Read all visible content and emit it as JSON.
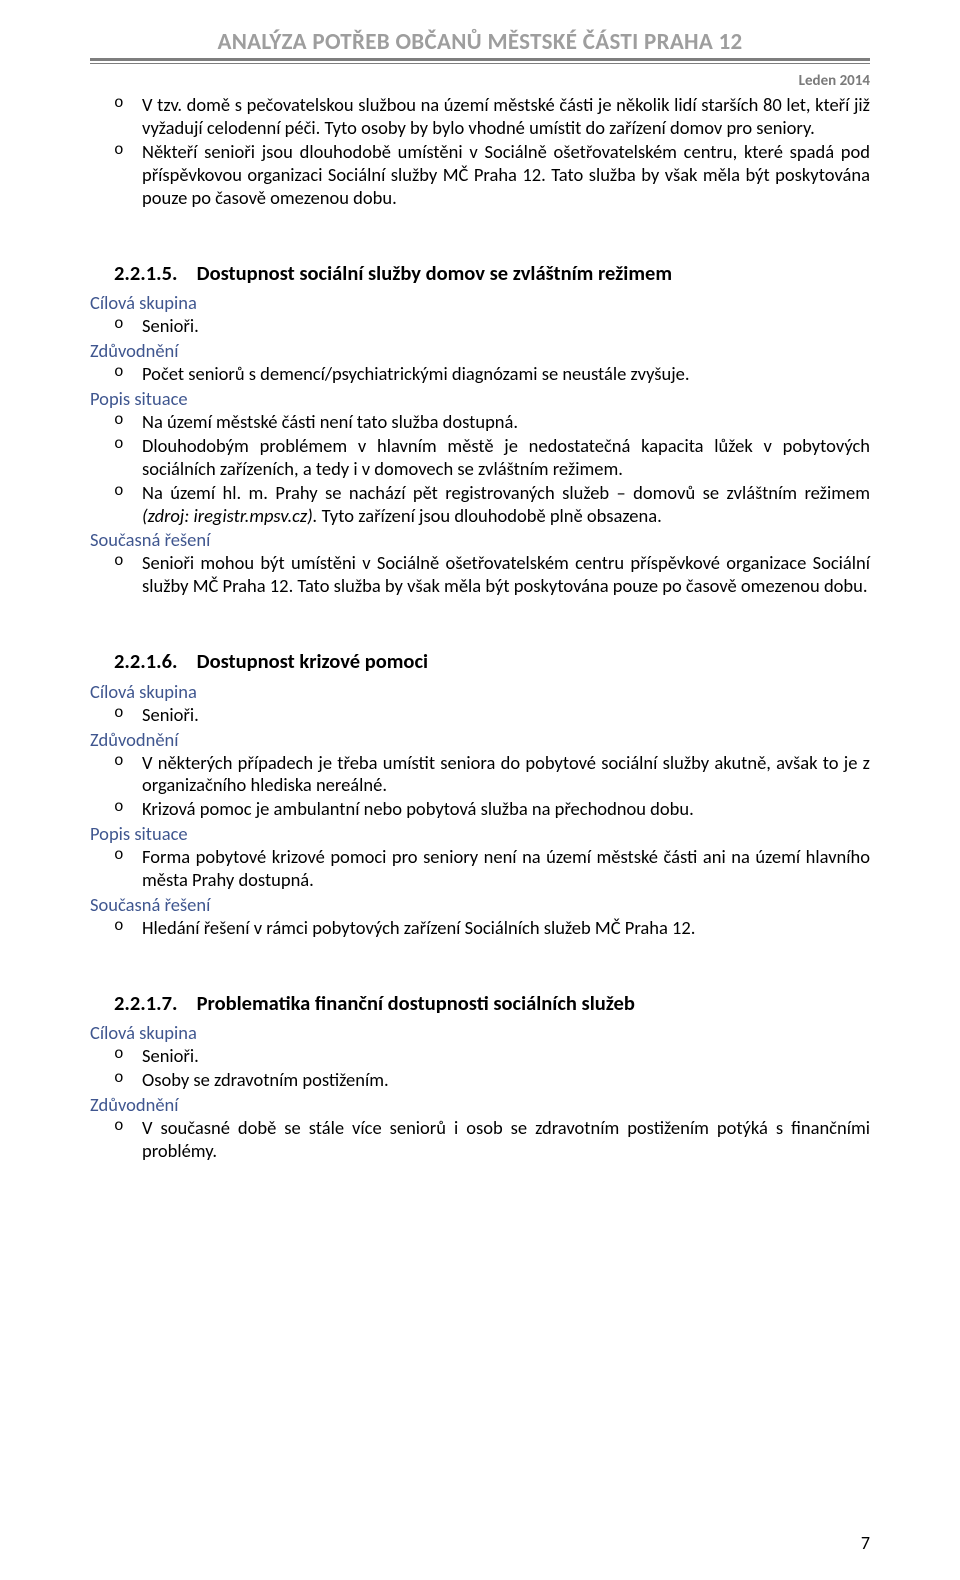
{
  "header": {
    "title": "ANALÝZA POTŘEB OBČANŮ MĚSTSKÉ ČÁSTI PRAHA 12",
    "date": "Leden 2014"
  },
  "intro_items": [
    "V tzv. domě s pečovatelskou službou na území městské části je několik lidí starších 80 let, kteří již vyžadují celodenní péči. Tyto osoby by bylo vhodné umístit do zařízení domov pro seniory.",
    "Někteří senioři jsou dlouhodobě umístěni v Sociálně ošetřovatelském centru, které spadá pod příspěvkovou organizaci Sociální služby MČ Praha 12. Tato služba by však měla být poskytována pouze po časově omezenou dobu."
  ],
  "labels": {
    "cilova": "Cílová skupina",
    "zduvod": "Zdůvodnění",
    "popis": "Popis situace",
    "reseni": "Současná řešení"
  },
  "s215": {
    "num": "2.2.1.5.",
    "title": "Dostupnost sociální služby domov se zvláštním režimem",
    "cilova": [
      "Senioři."
    ],
    "zduvod": [
      "Počet seniorů s demencí/psychiatrickými diagnózami se neustále zvyšuje."
    ],
    "popis": [
      "Na území městské části není tato služba dostupná.",
      "Dlouhodobým problémem v hlavním městě je nedostatečná kapacita lůžek v pobytových sociálních zařízeních, a tedy i v domovech se zvláštním režimem.",
      "Na území hl. m. Prahy se nachází pět registrovaných služeb – domovů se zvláštním režimem <i>(zdroj: iregistr.mpsv.cz).</i> Tyto zařízení jsou dlouhodobě plně obsazena."
    ],
    "reseni": [
      "Senioři mohou být umístěni v Sociálně ošetřovatelském centru příspěvkové organizace Sociální služby MČ Praha 12. Tato služba by však měla být poskytována pouze po časově omezenou dobu."
    ]
  },
  "s216": {
    "num": "2.2.1.6.",
    "title": "Dostupnost krizové pomoci",
    "cilova": [
      "Senioři."
    ],
    "zduvod": [
      "V některých případech je třeba umístit seniora do pobytové sociální služby akutně, avšak to je z organizačního hlediska nereálné.",
      "Krizová pomoc je ambulantní nebo pobytová služba na přechodnou dobu."
    ],
    "popis": [
      "Forma pobytové krizové pomoci pro seniory není na území městské části ani na území hlavního města Prahy dostupná."
    ],
    "reseni": [
      "Hledání řešení v rámci pobytových zařízení Sociálních služeb MČ Praha 12."
    ]
  },
  "s217": {
    "num": "2.2.1.7.",
    "title": "Problematika finanční dostupnosti sociálních služeb",
    "cilova": [
      "Senioři.",
      "Osoby se zdravotním postižením."
    ],
    "zduvod": [
      "V současné době se stále více seniorů i osob se zdravotním postižením potýká s finančními problémy."
    ]
  },
  "page_number": "7",
  "colors": {
    "header_text": "#9e9e9e",
    "rule": "#7e7e7e",
    "label": "#3f568f",
    "body": "#000000",
    "background": "#ffffff"
  }
}
